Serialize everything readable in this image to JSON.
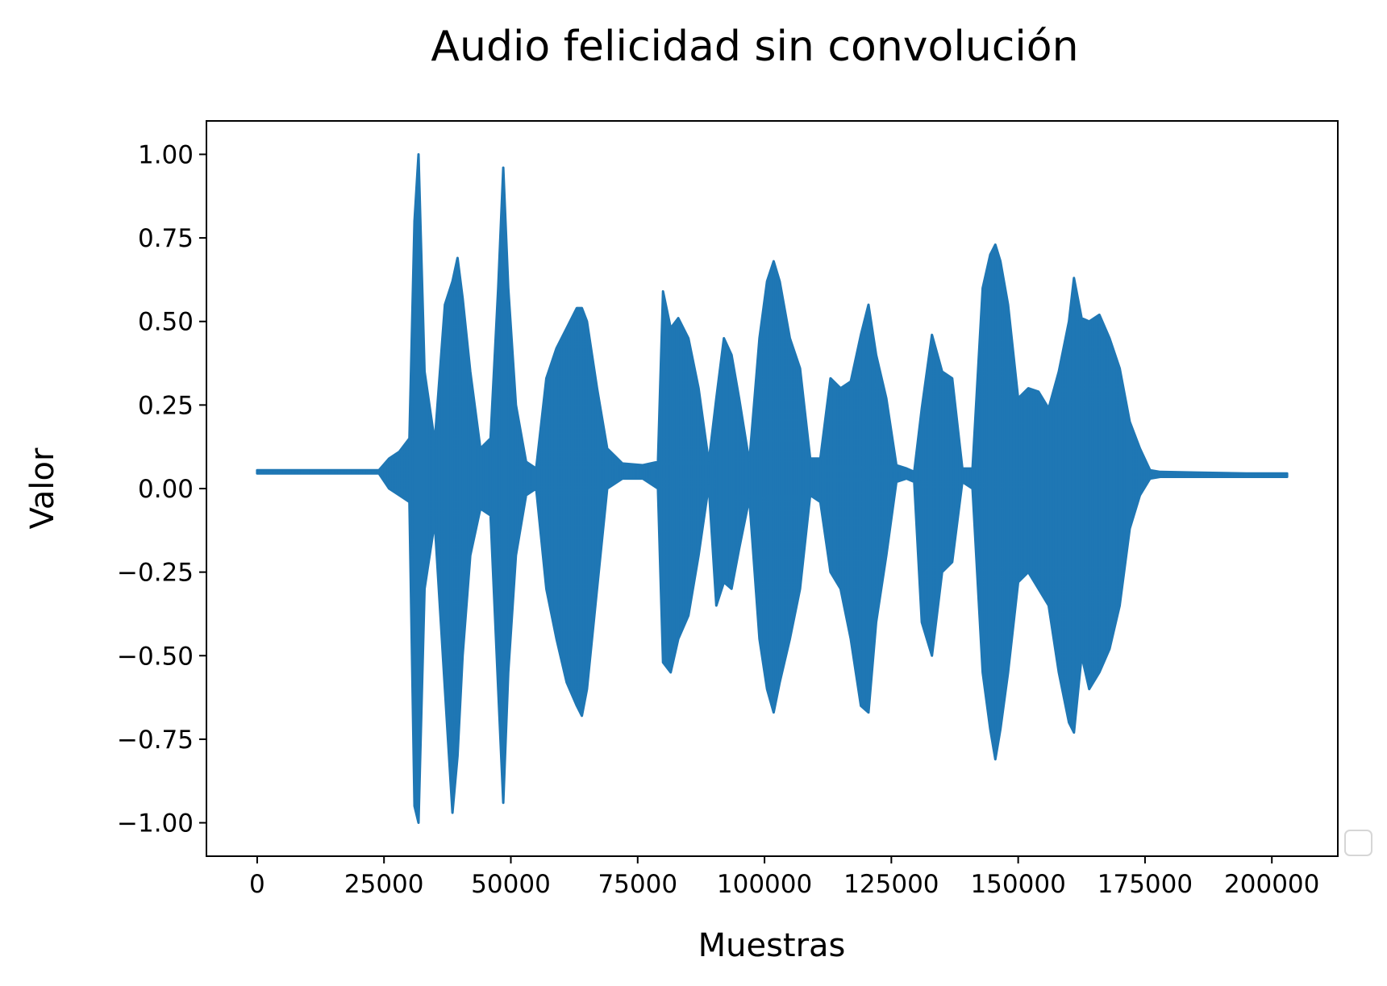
{
  "chart_data": {
    "type": "line",
    "title": "Audio felicidad sin convolución",
    "xlabel": "Muestras",
    "ylabel": "Valor",
    "xlim": [
      -10000,
      213000
    ],
    "ylim": [
      -1.1,
      1.1
    ],
    "xticks": [
      0,
      25000,
      50000,
      75000,
      100000,
      125000,
      150000,
      175000,
      200000
    ],
    "xtick_labels": [
      "0",
      "25000",
      "50000",
      "75000",
      "100000",
      "125000",
      "150000",
      "175000",
      "200000"
    ],
    "yticks": [
      1.0,
      0.75,
      0.5,
      0.25,
      0.0,
      -0.25,
      -0.5,
      -0.75,
      -1.0
    ],
    "ytick_labels": [
      "1.00",
      "0.75",
      "0.50",
      "0.25",
      "0.00",
      "−0.25",
      "−0.50",
      "−0.75",
      "−1.00"
    ],
    "grid": false,
    "legend": "lower-right (empty)",
    "series": [
      {
        "color": "#1f77b4",
        "description": "audio waveform envelope (sample index vs. amplitude), approximately 203000 samples",
        "x": [
          0,
          24000,
          26000,
          28000,
          30000,
          31000,
          31800,
          33000,
          35000,
          37000,
          38500,
          39500,
          40500,
          42000,
          44000,
          46000,
          47500,
          48500,
          49500,
          51000,
          53000,
          55000,
          57000,
          59000,
          61000,
          63000,
          64000,
          65000,
          67000,
          69000,
          72000,
          76000,
          79000,
          80000,
          81500,
          83000,
          85000,
          87000,
          89000,
          90500,
          92000,
          93500,
          95000,
          97000,
          99000,
          100500,
          101800,
          103000,
          105000,
          107000,
          109000,
          111000,
          113000,
          115000,
          117000,
          119000,
          120500,
          122000,
          124000,
          126000,
          128000,
          129500,
          131000,
          133000,
          135000,
          137000,
          139000,
          141000,
          143000,
          144500,
          145500,
          146500,
          148000,
          150000,
          152000,
          154000,
          156000,
          158000,
          160000,
          161000,
          162500,
          164000,
          166000,
          168000,
          170000,
          172000,
          174000,
          176000,
          178000,
          185000,
          195000,
          203000
        ],
        "upper": [
          0.055,
          0.055,
          0.09,
          0.11,
          0.15,
          0.8,
          1.0,
          0.35,
          0.14,
          0.55,
          0.62,
          0.69,
          0.57,
          0.35,
          0.12,
          0.15,
          0.6,
          0.96,
          0.6,
          0.25,
          0.08,
          0.06,
          0.33,
          0.42,
          0.48,
          0.54,
          0.54,
          0.5,
          0.3,
          0.12,
          0.075,
          0.07,
          0.08,
          0.59,
          0.48,
          0.51,
          0.45,
          0.3,
          0.08,
          0.27,
          0.45,
          0.4,
          0.27,
          0.08,
          0.45,
          0.62,
          0.68,
          0.62,
          0.45,
          0.36,
          0.09,
          0.09,
          0.33,
          0.3,
          0.32,
          0.46,
          0.55,
          0.4,
          0.27,
          0.07,
          0.06,
          0.05,
          0.24,
          0.46,
          0.35,
          0.33,
          0.06,
          0.06,
          0.6,
          0.7,
          0.73,
          0.68,
          0.55,
          0.27,
          0.3,
          0.29,
          0.24,
          0.35,
          0.5,
          0.63,
          0.51,
          0.5,
          0.52,
          0.45,
          0.36,
          0.2,
          0.12,
          0.055,
          0.05,
          0.048,
          0.045,
          0.045
        ],
        "lower": [
          0.045,
          0.045,
          0.0,
          -0.02,
          -0.04,
          -0.95,
          -1.0,
          -0.3,
          -0.1,
          -0.6,
          -0.97,
          -0.8,
          -0.5,
          -0.2,
          -0.06,
          -0.08,
          -0.6,
          -0.94,
          -0.55,
          -0.2,
          -0.02,
          0.0,
          -0.3,
          -0.45,
          -0.58,
          -0.65,
          -0.68,
          -0.6,
          -0.3,
          0.0,
          0.03,
          0.03,
          0.0,
          -0.52,
          -0.55,
          -0.45,
          -0.38,
          -0.2,
          0.01,
          -0.35,
          -0.28,
          -0.3,
          -0.18,
          -0.03,
          -0.45,
          -0.6,
          -0.67,
          -0.58,
          -0.45,
          -0.3,
          -0.02,
          -0.04,
          -0.25,
          -0.3,
          -0.45,
          -0.65,
          -0.67,
          -0.4,
          -0.2,
          0.02,
          0.03,
          0.02,
          -0.4,
          -0.5,
          -0.25,
          -0.22,
          0.02,
          0.0,
          -0.55,
          -0.72,
          -0.81,
          -0.72,
          -0.55,
          -0.28,
          -0.25,
          -0.3,
          -0.35,
          -0.55,
          -0.7,
          -0.73,
          -0.5,
          -0.6,
          -0.55,
          -0.48,
          -0.35,
          -0.12,
          -0.02,
          0.03,
          0.035,
          0.035,
          0.035,
          0.035
        ]
      }
    ]
  }
}
